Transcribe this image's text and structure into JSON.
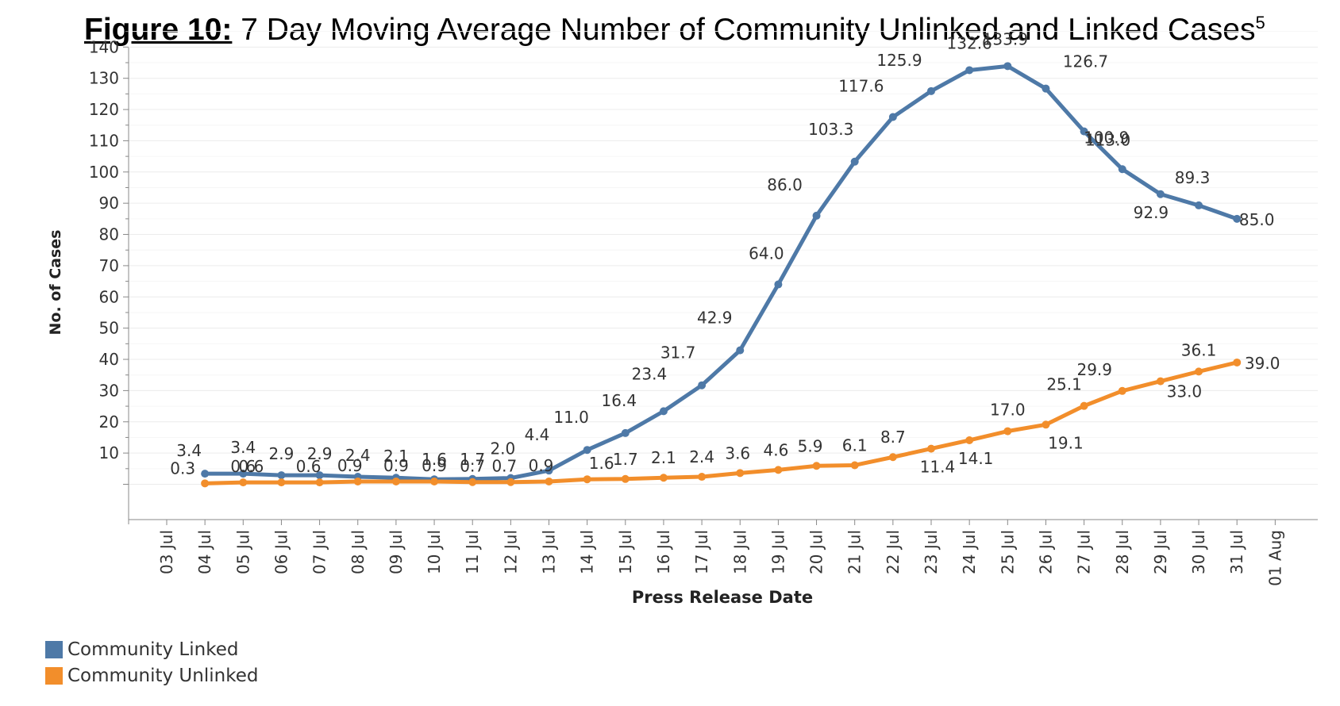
{
  "title": {
    "figure_label": "Figure 10:",
    "text": " 7 Day Moving Average Number of Community Unlinked and Linked Cases",
    "superscript": "5"
  },
  "chart_data": {
    "type": "line",
    "title": "7 Day Moving Average Number of Community Unlinked and Linked Cases",
    "xlabel": "Press Release Date",
    "ylabel": "No. of Cases",
    "x_ticks": [
      "03 Jul",
      "04 Jul",
      "05 Jul",
      "06 Jul",
      "07 Jul",
      "08 Jul",
      "09 Jul",
      "10 Jul",
      "11 Jul",
      "12 Jul",
      "13 Jul",
      "14 Jul",
      "15 Jul",
      "16 Jul",
      "17 Jul",
      "18 Jul",
      "19 Jul",
      "20 Jul",
      "21 Jul",
      "22 Jul",
      "23 Jul",
      "24 Jul",
      "25 Jul",
      "26 Jul",
      "27 Jul",
      "28 Jul",
      "29 Jul",
      "30 Jul",
      "31 Jul",
      "01 Aug"
    ],
    "y_ticks": [
      10,
      20,
      30,
      40,
      50,
      60,
      70,
      80,
      90,
      100,
      110,
      120,
      130,
      140
    ],
    "ylim": [
      -5,
      145
    ],
    "grid": true,
    "legend_position": "bottom-left",
    "categories": [
      "04 Jul",
      "05 Jul",
      "06 Jul",
      "07 Jul",
      "08 Jul",
      "09 Jul",
      "10 Jul",
      "11 Jul",
      "12 Jul",
      "13 Jul",
      "14 Jul",
      "15 Jul",
      "16 Jul",
      "17 Jul",
      "18 Jul",
      "19 Jul",
      "20 Jul",
      "21 Jul",
      "22 Jul",
      "23 Jul",
      "24 Jul",
      "25 Jul",
      "26 Jul",
      "27 Jul",
      "28 Jul",
      "29 Jul",
      "30 Jul",
      "31 Jul"
    ],
    "series": [
      {
        "name": "Community Linked",
        "color": "#4e79a7",
        "values": [
          3.4,
          3.4,
          2.9,
          2.9,
          2.4,
          2.1,
          1.6,
          1.7,
          2.0,
          4.4,
          11.0,
          16.4,
          23.4,
          31.7,
          42.9,
          64.0,
          86.0,
          103.3,
          117.6,
          125.9,
          132.6,
          133.9,
          126.7,
          113.0,
          100.9,
          92.9,
          89.3,
          85.0
        ],
        "labels": [
          "3.4",
          "3.4",
          "2.9",
          "2.9",
          "2.4",
          "2.1",
          "1.6",
          "1.7",
          "2.0",
          "4.4",
          "11.0",
          "16.4",
          "23.4",
          "31.7",
          "42.9",
          "64.0",
          "86.0",
          "103.3",
          "117.6",
          "125.9",
          "132.6",
          "133.9",
          "126.7",
          "113.0",
          "100.9",
          "92.9",
          "89.3",
          "85.0"
        ]
      },
      {
        "name": "Community Unlinked",
        "color": "#f28e2b",
        "values": [
          0.3,
          0.6,
          0.6,
          0.6,
          0.9,
          0.9,
          0.9,
          0.7,
          0.7,
          0.9,
          1.6,
          1.7,
          2.1,
          2.4,
          3.6,
          4.6,
          5.9,
          6.1,
          8.7,
          11.4,
          14.1,
          17.0,
          19.1,
          25.1,
          29.9,
          33.0,
          36.1,
          39.0
        ],
        "labels": [
          "0.3",
          "0.6",
          "0.6",
          "0.6",
          "0.9",
          "0.9",
          "0.9",
          "0.7",
          "0.7",
          "0.9",
          "1.6",
          "1.7",
          "2.1",
          "2.4",
          "3.6",
          "4.6",
          "5.9",
          "6.1",
          "8.7",
          "11.4",
          "14.1",
          "17.0",
          "19.1",
          "25.1",
          "29.9",
          "33.0",
          "36.1",
          "39.0"
        ]
      }
    ]
  },
  "legend": [
    {
      "label": "Community Linked",
      "color": "#4e79a7"
    },
    {
      "label": "Community Unlinked",
      "color": "#f28e2b"
    }
  ]
}
